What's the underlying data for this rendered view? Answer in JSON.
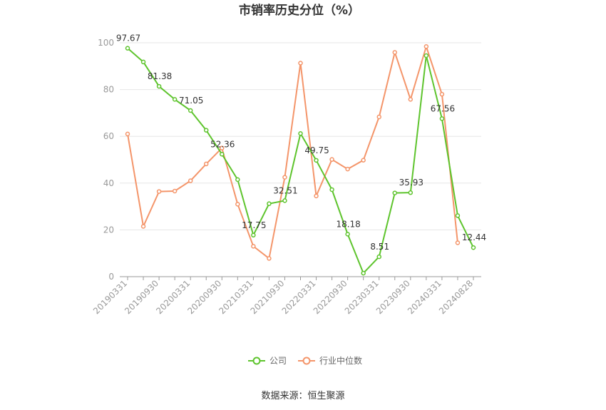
{
  "chart_data": {
    "type": "line",
    "title": "市销率历史分位（%）",
    "x": [
      "20190331",
      "20190630",
      "20190930",
      "20191231",
      "20200331",
      "20200630",
      "20200930",
      "20201231",
      "20210331",
      "20210630",
      "20210930",
      "20211231",
      "20220331",
      "20220630",
      "20220930",
      "20221231",
      "20230331",
      "20230630",
      "20230930",
      "20231231",
      "20240331",
      "20240630",
      "20240828"
    ],
    "x_tick_labels": [
      "20190331",
      "20190930",
      "20200331",
      "20200930",
      "20210331",
      "20210930",
      "20220331",
      "20220930",
      "20230331",
      "20230930",
      "20240331",
      "20240828"
    ],
    "ylim": [
      0,
      100
    ],
    "y_ticks": [
      0,
      20,
      40,
      60,
      80,
      100
    ],
    "grid": true,
    "legend_position": "bottom",
    "series": [
      {
        "name": "公司",
        "color": "#5ec42d",
        "values": [
          97.67,
          91.8,
          81.38,
          75.8,
          71.05,
          62.6,
          52.36,
          41.5,
          17.75,
          31.2,
          32.51,
          61.2,
          49.75,
          37.2,
          18.18,
          1.5,
          8.51,
          35.8,
          35.93,
          94.5,
          67.56,
          26.1,
          12.44
        ],
        "labels": {
          "0": "97.67",
          "2": "81.38",
          "4": "71.05",
          "6": "52.36",
          "8": "17.75",
          "10": "32.51",
          "12": "49.75",
          "14": "18.18",
          "16": "8.51",
          "18": "35.93",
          "20": "67.56",
          "22": "12.44"
        }
      },
      {
        "name": "行业中位数",
        "color": "#f4956a",
        "values": [
          61.0,
          21.5,
          36.4,
          36.6,
          41.0,
          48.2,
          55.0,
          31.0,
          13.0,
          7.8,
          42.5,
          91.3,
          34.5,
          50.1,
          46.0,
          49.8,
          68.3,
          95.9,
          75.8,
          98.4,
          78.0,
          14.5,
          null
        ]
      }
    ]
  },
  "source": "数据来源：恒生聚源"
}
